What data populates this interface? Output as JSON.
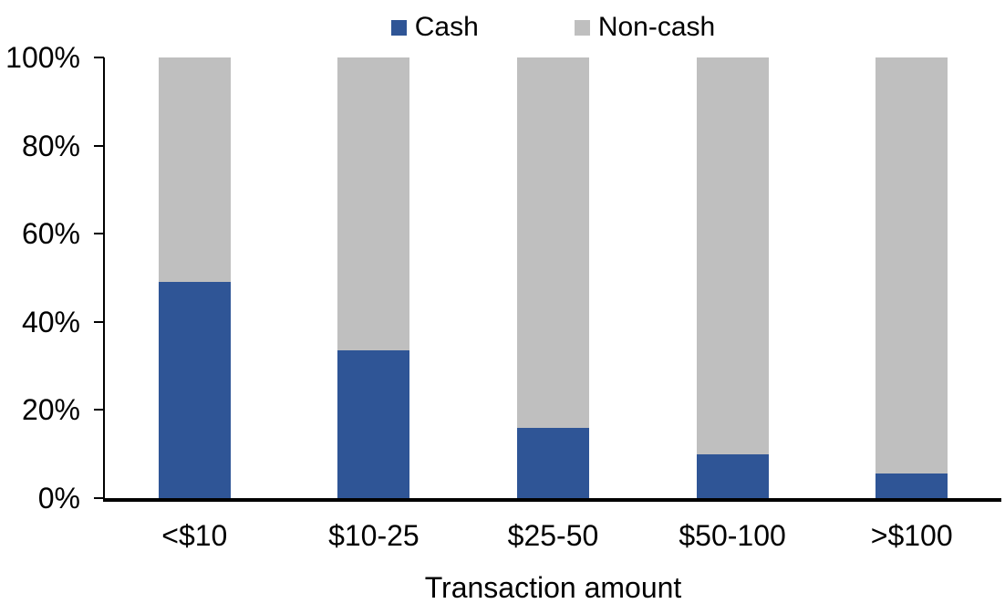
{
  "chart_data": {
    "type": "bar",
    "subtype": "stacked-100-percent",
    "title": "",
    "xlabel": "Transaction amount",
    "ylabel": "",
    "categories": [
      "<$10",
      "$10-25",
      "$25-50",
      "$50-100",
      ">$100"
    ],
    "series": [
      {
        "name": "Cash",
        "color": "#2F5596",
        "values": [
          49,
          33.5,
          16,
          10,
          5.5
        ]
      },
      {
        "name": "Non-cash",
        "color": "#BFBFBF",
        "values": [
          51,
          66.5,
          84,
          90,
          94.5
        ]
      }
    ],
    "y_ticks": [
      "0%",
      "20%",
      "40%",
      "60%",
      "80%",
      "100%"
    ],
    "ylim": [
      0,
      100
    ],
    "grid": false,
    "legend_position": "top-center",
    "axis_color": "#000000",
    "text_color": "#000000"
  }
}
